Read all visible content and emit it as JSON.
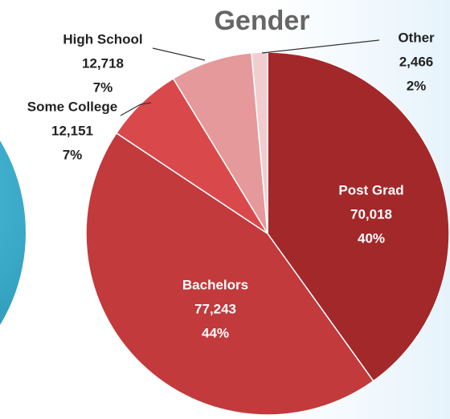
{
  "chart_data": {
    "type": "pie",
    "title": "Gender",
    "categories": [
      "Post Grad",
      "Bachelors",
      "Some College",
      "High School",
      "Other"
    ],
    "values": [
      70018,
      77243,
      12151,
      12718,
      2466
    ],
    "value_labels": [
      "70,018",
      "77,243",
      "12,151",
      "12,718",
      "2,466"
    ],
    "percent_labels": [
      "40%",
      "44%",
      "7%",
      "7%",
      "2%"
    ],
    "colors": [
      "#a3282a",
      "#c23a3c",
      "#d9494b",
      "#e5999b",
      "#f2cdd0"
    ]
  }
}
